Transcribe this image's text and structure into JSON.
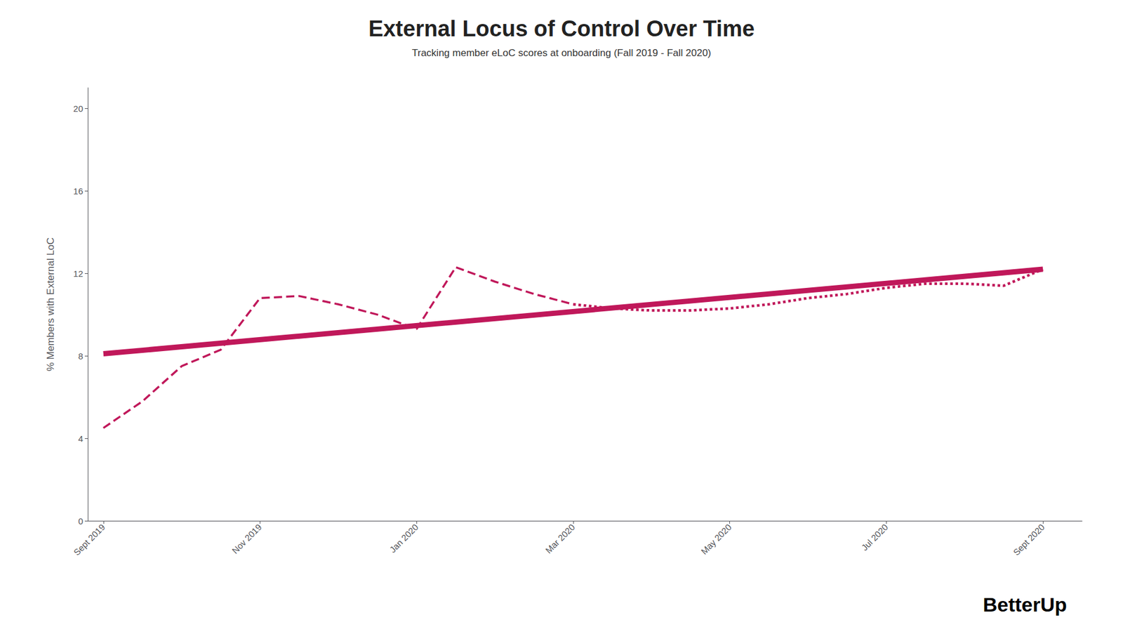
{
  "chart_data": {
    "type": "line",
    "title": "External Locus of Control Over Time",
    "subtitle": "Tracking member eLoC scores at onboarding (Fall 2019 - Fall 2020)",
    "ylabel": "% Members with External LoC",
    "annotations": [
      "BetterUp"
    ],
    "grid": false,
    "xlim": [
      -0.2,
      12.5
    ],
    "xticks": [
      {
        "value": 0,
        "label": "Sept 2019"
      },
      {
        "value": 2,
        "label": "Nov 2019"
      },
      {
        "value": 4,
        "label": "Jan 2020"
      },
      {
        "value": 6,
        "label": "Mar 2020"
      },
      {
        "value": 8,
        "label": "May 2020"
      },
      {
        "value": 10,
        "label": "Jul 2020"
      },
      {
        "value": 12,
        "label": "Sept 2020"
      }
    ],
    "ylim": [
      0,
      21
    ],
    "yticks": [
      0,
      4,
      8,
      12,
      16,
      20
    ],
    "series": [
      {
        "color": "#C0185A",
        "line_style": "dashed",
        "x": [
          0,
          0.5,
          1.0,
          1.5,
          2.0,
          2.5,
          3.0,
          3.5,
          4.0,
          4.5,
          5.0,
          5.5,
          6.0
        ],
        "values": [
          4.5,
          5.8,
          7.5,
          8.3,
          10.8,
          10.9,
          10.5,
          10.0,
          9.3,
          12.3,
          11.6,
          11.0,
          10.5
        ]
      },
      {
        "color": "#C0185A",
        "line_style": "dotted",
        "x": [
          6.0,
          6.5,
          7.0,
          7.5,
          8.0,
          8.5,
          9.0,
          9.5,
          10.0,
          10.5,
          11.0,
          11.5,
          12.0
        ],
        "values": [
          10.5,
          10.3,
          10.2,
          10.2,
          10.3,
          10.5,
          10.8,
          11.0,
          11.3,
          11.5,
          11.5,
          11.4,
          12.2
        ]
      },
      {
        "color": "#C0185A",
        "line_style": "solid",
        "x": [
          0,
          12
        ],
        "values": [
          8.1,
          12.2
        ]
      }
    ]
  }
}
